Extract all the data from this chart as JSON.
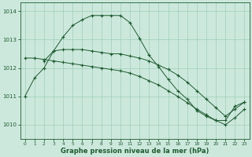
{
  "xlabel": "Graphe pression niveau de la mer (hPa)",
  "xlim": [
    -0.5,
    23.5
  ],
  "ylim": [
    1009.5,
    1014.3
  ],
  "yticks": [
    1010,
    1011,
    1012,
    1013,
    1014
  ],
  "xticks": [
    0,
    1,
    2,
    3,
    4,
    5,
    6,
    7,
    8,
    9,
    10,
    11,
    12,
    13,
    14,
    15,
    16,
    17,
    18,
    19,
    20,
    21,
    22,
    23
  ],
  "background_color": "#cce8dc",
  "grid_color": "#9ecfb8",
  "line_color": "#1e5c30",
  "line1_x": [
    0,
    1,
    2,
    3,
    4,
    5,
    6,
    7,
    8,
    9,
    10,
    11,
    12,
    13,
    14,
    15,
    16,
    17,
    18,
    19,
    20,
    21,
    22,
    23
  ],
  "line1_y": [
    1011.0,
    1011.65,
    1012.0,
    1012.6,
    1013.1,
    1013.5,
    1013.7,
    1013.85,
    1013.85,
    1013.85,
    1013.85,
    1013.6,
    1013.05,
    1012.45,
    1012.05,
    1011.6,
    1011.2,
    1010.9,
    1010.5,
    1010.3,
    1010.15,
    1010.15,
    1010.65,
    1010.8
  ],
  "line2_x": [
    2,
    3,
    4,
    5,
    6,
    7,
    8,
    9,
    10,
    11,
    12,
    13,
    14,
    15,
    16,
    17,
    18,
    19,
    20,
    21,
    22,
    23
  ],
  "line2_y": [
    1012.25,
    1012.6,
    1012.65,
    1012.65,
    1012.65,
    1012.6,
    1012.55,
    1012.5,
    1012.5,
    1012.42,
    1012.35,
    1012.25,
    1012.1,
    1011.95,
    1011.75,
    1011.5,
    1011.2,
    1010.9,
    1010.6,
    1010.3,
    1010.55,
    1010.8
  ],
  "line3_x": [
    0,
    1,
    2,
    3,
    4,
    5,
    6,
    7,
    8,
    9,
    10,
    11,
    12,
    13,
    14,
    15,
    16,
    17,
    18,
    19,
    20,
    21,
    22,
    23
  ],
  "line3_y": [
    1012.35,
    1012.35,
    1012.3,
    1012.25,
    1012.2,
    1012.15,
    1012.1,
    1012.05,
    1012.0,
    1011.95,
    1011.9,
    1011.82,
    1011.7,
    1011.55,
    1011.4,
    1011.2,
    1011.0,
    1010.78,
    1010.55,
    1010.35,
    1010.15,
    1010.0,
    1010.25,
    1010.55
  ]
}
